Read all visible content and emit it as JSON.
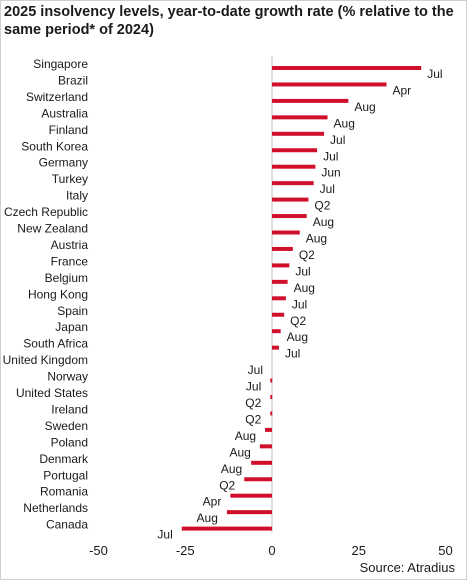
{
  "chart_data": {
    "type": "bar",
    "orientation": "horizontal",
    "title": "2025 insolvency levels, year-to-date growth rate (% relative to the same period* of 2024)",
    "source": "Source: Atradius",
    "xlim": [
      -50,
      50
    ],
    "xticks": [
      "-50",
      "-25",
      "0",
      "25",
      "50"
    ],
    "grid": false,
    "bar_color": "#d0102b",
    "categories": [
      "Singapore",
      "Brazil",
      "Switzerland",
      "Australia",
      "Finland",
      "South Korea",
      "Germany",
      "Turkey",
      "Italy",
      "Czech Republic",
      "New Zealand",
      "Austria",
      "France",
      "Belgium",
      "Hong Kong",
      "Spain",
      "Japan",
      "South Africa",
      "United Kingdom",
      "Norway",
      "United States",
      "Ireland",
      "Sweden",
      "Poland",
      "Denmark",
      "Portugal",
      "Romania",
      "Netherlands",
      "Canada"
    ],
    "values": [
      43,
      33,
      22,
      16,
      15,
      13,
      12.5,
      12,
      10.5,
      10,
      8,
      6,
      5,
      4.5,
      4,
      3.5,
      2.5,
      2,
      0,
      -0.5,
      -0.5,
      -0.5,
      -2,
      -3.5,
      -6,
      -8,
      -12,
      -13,
      -26
    ],
    "period_labels": [
      "Jul",
      "Apr",
      "Aug",
      "Aug",
      "Jul",
      "Jul",
      "Jun",
      "Jul",
      "Q2",
      "Aug",
      "Aug",
      "Q2",
      "Jul",
      "Aug",
      "Jul",
      "Q2",
      "Aug",
      "Jul",
      "Jul",
      "Jul",
      "Q2",
      "Q2",
      "Aug",
      "Aug",
      "Aug",
      "Q2",
      "Apr",
      "Aug",
      "Jul"
    ]
  }
}
